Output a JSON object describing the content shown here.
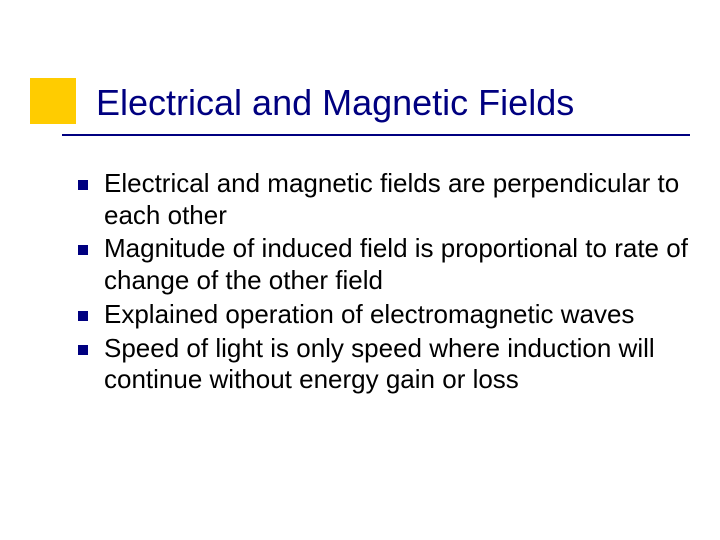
{
  "slide": {
    "title": "Electrical and Magnetic Fields",
    "title_color": "#000080",
    "title_fontsize": 36,
    "accent_color": "#ffcc00",
    "underline_color": "#000080",
    "background_color": "#ffffff",
    "bullet_marker_color": "#000080",
    "body_fontsize": 26,
    "body_color": "#000000",
    "bullets": [
      {
        "text": "Electrical and magnetic fields are perpendicular to each other"
      },
      {
        "text": "Magnitude of induced field is proportional to rate of change of the other field"
      },
      {
        "text": "Explained operation of electromagnetic waves"
      },
      {
        "text": "Speed of light is only speed where induction will continue without energy gain or loss"
      }
    ]
  }
}
